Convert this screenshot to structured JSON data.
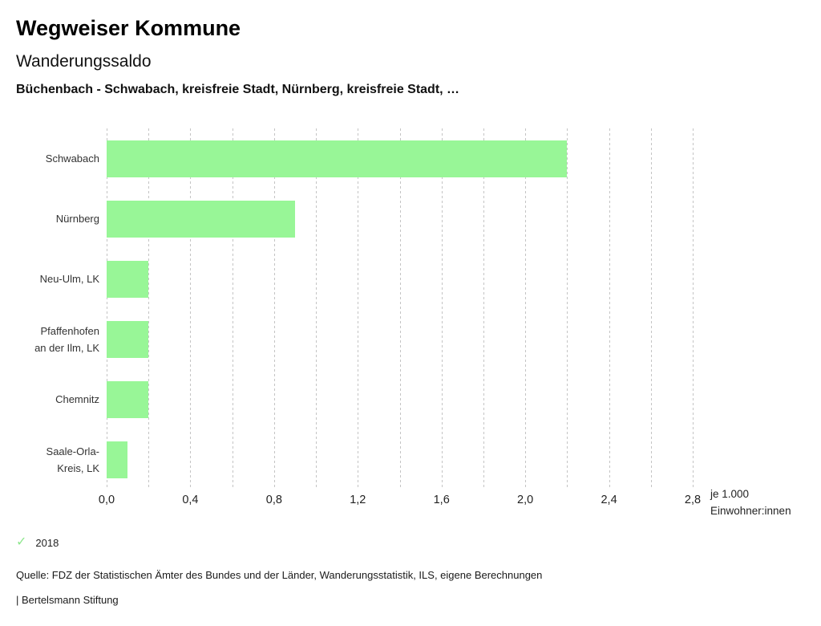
{
  "header": {
    "app_title": "Wegweiser Kommune",
    "chart_title": "Wanderungssaldo",
    "context_line": "Büchenbach - Schwabach, kreisfreie Stadt, Nürnberg, kreisfreie Stadt, …"
  },
  "chart_data": {
    "type": "bar",
    "orientation": "horizontal",
    "title": "Wanderungssaldo",
    "categories": [
      "Schwabach",
      "Nürnberg",
      "Neu-Ulm, LK",
      "Pfaffenhofen an der Ilm, LK",
      "Chemnitz",
      "Saale-Orla-Kreis, LK"
    ],
    "categories_display": [
      "Schwabach",
      "Nürnberg",
      "Neu-Ulm, LK",
      "Pfaffenhofen\nan der Ilm, LK",
      "Chemnitz",
      "Saale-Orla-\nKreis, LK"
    ],
    "series": [
      {
        "name": "2018",
        "values": [
          2.2,
          0.9,
          0.2,
          0.2,
          0.2,
          0.1
        ]
      }
    ],
    "xlim": [
      0,
      2.8
    ],
    "gridline_step": 0.2,
    "x_ticks": [
      {
        "value": 0.0,
        "label": "0,0"
      },
      {
        "value": 0.4,
        "label": "0,4"
      },
      {
        "value": 0.8,
        "label": "0,8"
      },
      {
        "value": 1.2,
        "label": "1,2"
      },
      {
        "value": 1.6,
        "label": "1,6"
      },
      {
        "value": 2.0,
        "label": "2,0"
      },
      {
        "value": 2.4,
        "label": "2,4"
      },
      {
        "value": 2.8,
        "label": "2,8"
      }
    ],
    "xlabel": "je 1.000 Einwohner:innen",
    "unit_label_lines": [
      "je 1.000",
      "Einwohner:innen"
    ],
    "grid": true,
    "legend_position": "bottom-left",
    "bar_color": "#98f697",
    "grid_color": "#c4c4c4",
    "check_color": "#8fe78e"
  },
  "legend": {
    "check_icon": "✓",
    "label": "2018"
  },
  "footer": {
    "source": "Quelle: FDZ der Statistischen Ämter des Bundes und der Länder, Wanderungsstatistik, ILS, eigene Berechnungen",
    "attribution": "| Bertelsmann Stiftung"
  }
}
